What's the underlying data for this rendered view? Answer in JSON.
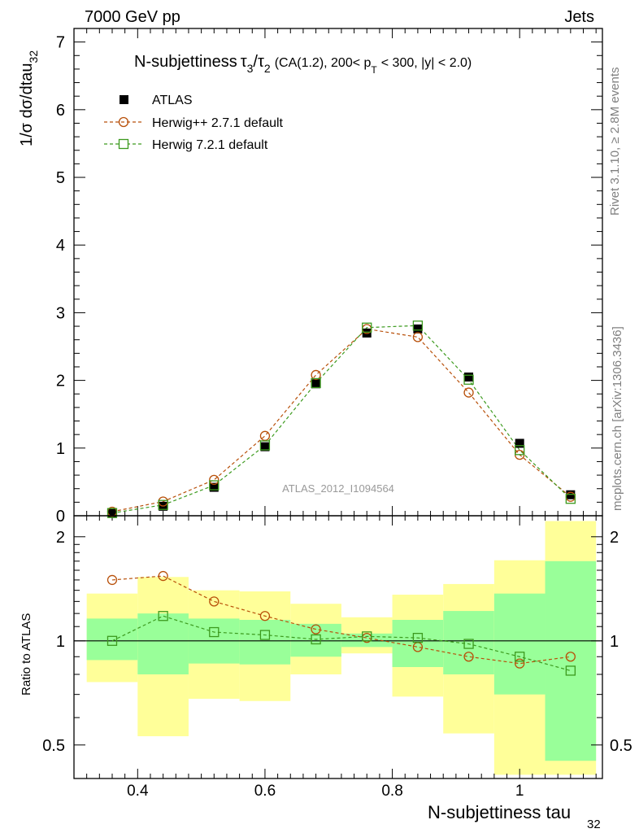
{
  "header": {
    "left": "7000 GeV pp",
    "right": "Jets"
  },
  "side_text": {
    "rivet": "Rivet 3.1.10, ≥ 2.8M events",
    "mcplots": "mcplots.cern.ch [arXiv:1306.3436]"
  },
  "chart_data": {
    "type": "scatter",
    "title": "N-subjettiness τ3/τ2 (CA(1.2), 200< pT < 300, |y| < 2.0)",
    "title_parts": {
      "lead": "N-subjettiness",
      "tau": "τ",
      "sub3": "3",
      "slash": "/",
      "sub2": "2",
      "cuts_a": "(CA(1.2), 200< p",
      "sub_t": "T",
      "cuts_b": "< 300, |y| < 2.0)"
    },
    "watermark": "ATLAS_2012_I1094564",
    "xlabel": "N-subjettiness tau",
    "xlabel_sub": "32",
    "ylabel": "1/σ dσ/dtau",
    "ylabel_sub": "32",
    "ratio_ylabel": "Ratio to ATLAS",
    "xlim": [
      0.3,
      1.13
    ],
    "ylim": [
      0,
      7.2
    ],
    "ratio_ylim": [
      0.4,
      2.3
    ],
    "ratio_log_scale": true,
    "x_ticks": [
      "0.4",
      "0.6",
      "0.8",
      "1"
    ],
    "y_ticks": [
      "0",
      "1",
      "2",
      "3",
      "4",
      "5",
      "6",
      "7"
    ],
    "ratio_ticks": [
      "0.5",
      "1",
      "2"
    ],
    "legend_position": "top-left",
    "bins": [
      [
        0.32,
        0.4
      ],
      [
        0.4,
        0.48
      ],
      [
        0.48,
        0.56
      ],
      [
        0.56,
        0.64
      ],
      [
        0.64,
        0.72
      ],
      [
        0.72,
        0.8
      ],
      [
        0.8,
        0.88
      ],
      [
        0.88,
        0.96
      ],
      [
        0.96,
        1.04
      ],
      [
        1.04,
        1.12
      ]
    ],
    "x": [
      0.36,
      0.44,
      0.52,
      0.6,
      0.68,
      0.76,
      0.84,
      0.92,
      1.0,
      1.08
    ],
    "series": [
      {
        "name": "ATLAS",
        "color": "#000000",
        "marker": "filled-square",
        "values": [
          0.04,
          0.14,
          0.42,
          1.02,
          1.95,
          2.7,
          2.76,
          2.05,
          1.07,
          0.31
        ],
        "ratio": [
          1,
          1,
          1,
          1,
          1,
          1,
          1,
          1,
          1,
          1
        ]
      },
      {
        "name": "Herwig++ 2.7.1 default",
        "color": "#b8500a",
        "marker": "open-circle",
        "values": [
          0.06,
          0.21,
          0.53,
          1.18,
          2.08,
          2.76,
          2.64,
          1.82,
          0.9,
          0.28
        ],
        "ratio": [
          1.5,
          1.54,
          1.3,
          1.18,
          1.08,
          1.02,
          0.96,
          0.9,
          0.86,
          0.9
        ]
      },
      {
        "name": "Herwig 7.2.1 default",
        "color": "#3c9a1e",
        "marker": "open-square",
        "values": [
          0.04,
          0.16,
          0.45,
          1.04,
          1.96,
          2.78,
          2.81,
          2.01,
          0.97,
          0.25
        ],
        "ratio": [
          1.0,
          1.18,
          1.06,
          1.04,
          1.01,
          1.03,
          1.02,
          0.98,
          0.9,
          0.82
        ]
      }
    ],
    "bands": {
      "stat_color": "#99ff99",
      "total_color": "#ffff99",
      "stat_lo": [
        0.88,
        0.8,
        0.86,
        0.855,
        0.9,
        0.96,
        0.84,
        0.8,
        0.7,
        0.45
      ],
      "stat_hi": [
        1.16,
        1.2,
        1.16,
        1.15,
        1.12,
        1.05,
        1.15,
        1.22,
        1.37,
        1.7
      ],
      "tot_lo": [
        0.76,
        0.53,
        0.68,
        0.67,
        0.8,
        0.92,
        0.69,
        0.54,
        0.41,
        0.41
      ],
      "tot_hi": [
        1.37,
        1.53,
        1.4,
        1.39,
        1.28,
        1.17,
        1.36,
        1.46,
        1.71,
        2.22
      ]
    }
  }
}
